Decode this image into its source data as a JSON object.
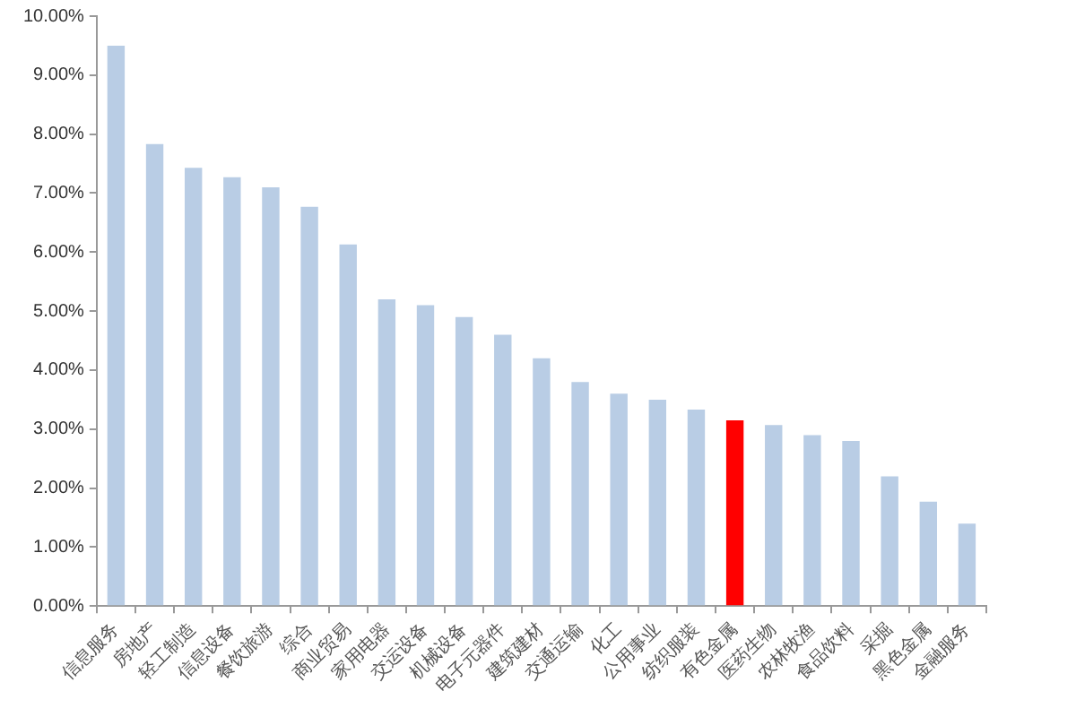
{
  "chart_data": {
    "type": "bar",
    "categories": [
      "信息服务",
      "房地产",
      "轻工制造",
      "信息设备",
      "餐饮旅游",
      "综合",
      "商业贸易",
      "家用电器",
      "交运设备",
      "机械设备",
      "电子元器件",
      "建筑建材",
      "交通运输",
      "化工",
      "公用事业",
      "纺织服装",
      "有色金属",
      "医药生物",
      "农林牧渔",
      "食品饮料",
      "采掘",
      "黑色金属",
      "金融服务"
    ],
    "values": [
      9.5,
      7.83,
      7.43,
      7.27,
      7.1,
      6.77,
      6.13,
      5.2,
      5.1,
      4.9,
      4.6,
      4.2,
      3.8,
      3.6,
      3.5,
      3.33,
      3.15,
      3.07,
      2.9,
      2.8,
      2.2,
      1.77,
      1.4
    ],
    "colors": [
      "#b9cde5",
      "#b9cde5",
      "#b9cde5",
      "#b9cde5",
      "#b9cde5",
      "#b9cde5",
      "#b9cde5",
      "#b9cde5",
      "#b9cde5",
      "#b9cde5",
      "#b9cde5",
      "#b9cde5",
      "#b9cde5",
      "#b9cde5",
      "#b9cde5",
      "#b9cde5",
      "#ff0000",
      "#b9cde5",
      "#b9cde5",
      "#b9cde5",
      "#b9cde5",
      "#b9cde5",
      "#b9cde5"
    ],
    "ylim": [
      0,
      10
    ],
    "yticks": [
      {
        "value": 0,
        "label": "0.00%"
      },
      {
        "value": 1,
        "label": "1.00%"
      },
      {
        "value": 2,
        "label": "2.00%"
      },
      {
        "value": 3,
        "label": "3.00%"
      },
      {
        "value": 4,
        "label": "4.00%"
      },
      {
        "value": 5,
        "label": "5.00%"
      },
      {
        "value": 6,
        "label": "6.00%"
      },
      {
        "value": 7,
        "label": "7.00%"
      },
      {
        "value": 8,
        "label": "8.00%"
      },
      {
        "value": 9,
        "label": "9.00%"
      },
      {
        "value": 10,
        "label": "10.00%"
      }
    ],
    "grid": false,
    "legend": false
  }
}
